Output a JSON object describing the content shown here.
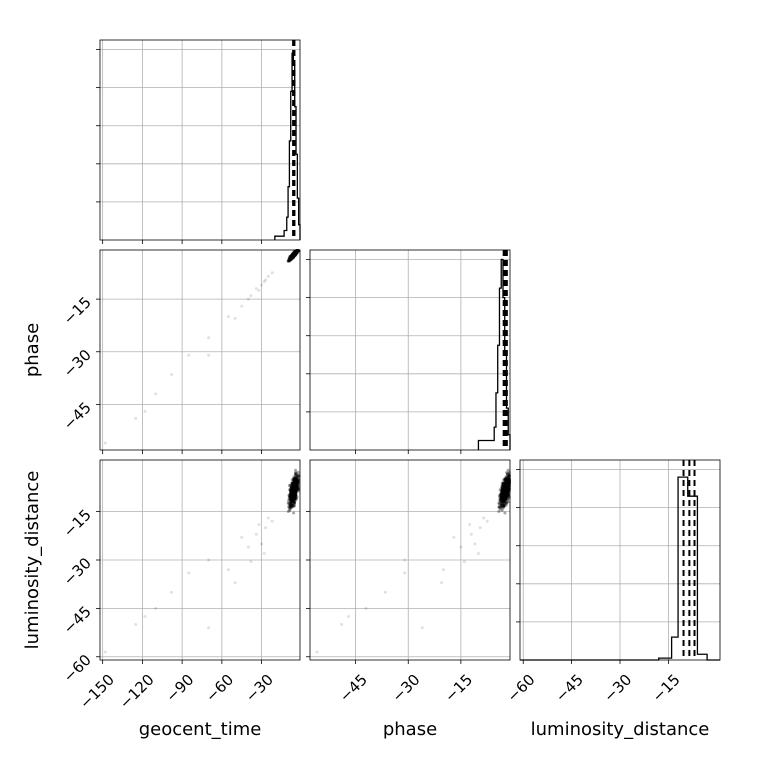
{
  "chart_data": {
    "type": "corner",
    "parameters": [
      "geocent_time",
      "phase",
      "luminosity_distance"
    ],
    "xlabels": [
      "geocent_time",
      "phase",
      "luminosity_distance"
    ],
    "ylabels": [
      "",
      "phase",
      "luminosity_distance"
    ],
    "ranges": [
      [
        -152,
        -1
      ],
      [
        -58,
        -1
      ],
      [
        -61,
        1
      ]
    ],
    "ticks": [
      [
        -150,
        -120,
        -90,
        -60,
        -30
      ],
      [
        -45,
        -30,
        -15
      ],
      [
        -60,
        -45,
        -30,
        -15
      ]
    ],
    "tick_labels": [
      [
        "−150",
        "−120",
        "−90",
        "−60",
        "−30"
      ],
      [
        "−45",
        "−30",
        "−15"
      ],
      [
        "−60",
        "−45",
        "−30",
        "−15"
      ]
    ],
    "quantiles": [
      [
        -6.2,
        -5.6,
        -5.2
      ],
      [
        -2.8,
        -2.3,
        -1.9
      ],
      [
        -10.3,
        -8.5,
        -6.9
      ]
    ],
    "histograms": [
      {
        "edges": [
          -20,
          -13,
          -11,
          -10,
          -9,
          -8,
          -7,
          -6,
          -5,
          -4,
          -3,
          -2,
          -1
        ],
        "counts": [
          0.02,
          0.05,
          0.12,
          0.28,
          0.52,
          0.78,
          0.98,
          0.92,
          0.7,
          0.45,
          0.22,
          0.08
        ]
      },
      {
        "edges": [
          -10,
          -5.5,
          -5,
          -4.5,
          -4,
          -3.5,
          -3,
          -2.5,
          -2,
          -1.5,
          -1
        ],
        "counts": [
          0.05,
          0.12,
          0.3,
          0.55,
          0.85,
          1.0,
          0.8,
          0.5,
          0.22,
          0.08
        ]
      },
      {
        "edges": [
          -61,
          -18,
          -14,
          -12,
          -9,
          -6,
          -3,
          1
        ],
        "counts": [
          0.0,
          0.01,
          0.12,
          0.96,
          0.86,
          0.03,
          0.0
        ]
      }
    ],
    "hist_ymax": [
      1.05,
      1.05,
      1.05
    ],
    "outliers": [
      {
        "time": -148,
        "phase": -56,
        "distance": -58.5
      },
      {
        "time": -125,
        "phase": -49,
        "distance": -50
      },
      {
        "time": -118,
        "phase": -47,
        "distance": -47.5
      },
      {
        "time": -110,
        "phase": -42,
        "distance": -45
      },
      {
        "time": -98,
        "phase": -36.5,
        "distance": -40
      },
      {
        "time": -85,
        "phase": -31,
        "distance": -34
      },
      {
        "time": -70,
        "phase": -26,
        "distance": -51
      },
      {
        "time": -70,
        "phase": -31,
        "distance": -30
      },
      {
        "time": -55,
        "phase": -20,
        "distance": -33
      },
      {
        "time": -50,
        "phase": -20.5,
        "distance": -37
      },
      {
        "time": -45,
        "phase": -17,
        "distance": -23
      },
      {
        "time": -38,
        "phase": -14,
        "distance": -30.5
      },
      {
        "time": -34,
        "phase": -12,
        "distance": -22
      },
      {
        "time": -30,
        "phase": -11,
        "distance": -25
      },
      {
        "time": -27,
        "phase": -9.5,
        "distance": -20
      },
      {
        "time": -25,
        "phase": -8.5,
        "distance": -17
      },
      {
        "time": -22,
        "phase": -7.5,
        "distance": -18
      },
      {
        "time": -40,
        "phase": -15,
        "distance": -26
      },
      {
        "time": -32,
        "phase": -12.5,
        "distance": -19
      },
      {
        "time": -28,
        "phase": -10,
        "distance": -28
      }
    ],
    "bulk": {
      "time_center": -5.6,
      "time_spread": 2.0,
      "phase_center": -2.3,
      "phase_spread": 0.9,
      "distance_center": -8.5,
      "distance_spread": 3.0,
      "count": 700
    }
  }
}
